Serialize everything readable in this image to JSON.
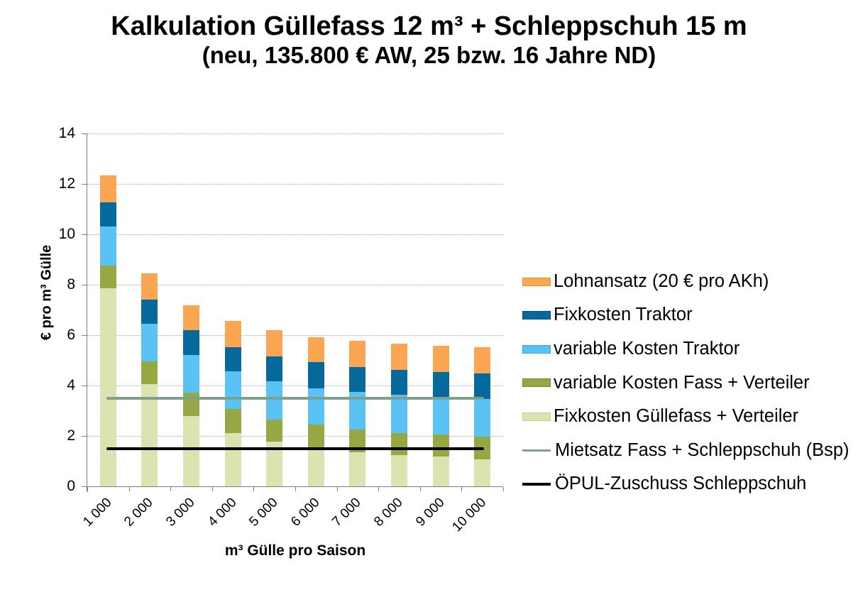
{
  "chart_data": {
    "type": "bar",
    "variant": "stacked-column-with-lines",
    "title": "Kalkulation Güllefass 12 m³ + Schleppschuh 15 m",
    "subtitle": "(neu, 135.800 € AW, 25 bzw. 16 Jahre ND)",
    "xlabel": "m³ Gülle pro Saison",
    "ylabel": "€ pro m³ Gülle",
    "ylim": [
      0,
      14
    ],
    "ytick_step": 2,
    "grid": "horizontal-dotted",
    "legend_position": "right",
    "categories": [
      "1 000",
      "2 000",
      "3 000",
      "4 000",
      "5 000",
      "6 000",
      "7 000",
      "8 000",
      "9 000",
      "10 000"
    ],
    "series": [
      {
        "name": "Fixkosten Güllefass + Verteiler",
        "color": "#dbe3b1",
        "values": [
          7.87,
          4.05,
          2.78,
          2.11,
          1.78,
          1.52,
          1.36,
          1.24,
          1.17,
          1.06
        ]
      },
      {
        "name": "variable Kosten Fass + Verteiler",
        "color": "#95a844",
        "values": [
          0.9,
          0.9,
          0.94,
          0.95,
          0.88,
          0.92,
          0.89,
          0.87,
          0.9,
          0.92
        ]
      },
      {
        "name": "variable Kosten Traktor",
        "color": "#5bc2f5",
        "values": [
          1.54,
          1.5,
          1.48,
          1.49,
          1.51,
          1.45,
          1.51,
          1.52,
          1.47,
          1.49
        ]
      },
      {
        "name": "Fixkosten Traktor",
        "color": "#05699c",
        "values": [
          0.95,
          0.97,
          0.99,
          0.98,
          0.98,
          1.03,
          0.97,
          0.98,
          1.0,
          1.01
        ]
      },
      {
        "name": "Lohnansatz (20 € pro AKh)",
        "color": "#fba652",
        "values": [
          1.07,
          1.03,
          1.0,
          1.04,
          1.05,
          1.01,
          1.05,
          1.04,
          1.05,
          1.04
        ]
      }
    ],
    "line_series": [
      {
        "name": "Mietsatz Fass + Schleppschuh (Bsp)",
        "color": "#7ca28e",
        "value": 3.5
      },
      {
        "name": "ÖPUL-Zuschuss Schleppschuh",
        "color": "#000000",
        "value": 1.5
      }
    ],
    "legend": [
      {
        "label": "Lohnansatz (20 € pro AKh)",
        "swatch": "box",
        "color": "#fba652",
        "border": "#e8922e"
      },
      {
        "label": "Fixkosten Traktor",
        "swatch": "box",
        "color": "#05699c",
        "border": "#034e78"
      },
      {
        "label": "variable Kosten Traktor",
        "swatch": "box",
        "color": "#5bc2f5",
        "border": "#35a8e0"
      },
      {
        "label": "variable Kosten Fass + Verteiler",
        "swatch": "box",
        "color": "#95a844",
        "border": "#788a31"
      },
      {
        "label": "Fixkosten Güllefass + Verteiler",
        "swatch": "box",
        "color": "#dbe3b1",
        "border": "#c4d18c"
      },
      {
        "label": "Mietsatz Fass + Schleppschuh (Bsp)",
        "swatch": "line",
        "color": "#7ca28e"
      },
      {
        "label": "ÖPUL-Zuschuss Schleppschuh",
        "swatch": "line",
        "color": "#000000"
      }
    ],
    "ytick_labels": [
      "0",
      "2",
      "4",
      "6",
      "8",
      "10",
      "12",
      "14"
    ]
  }
}
